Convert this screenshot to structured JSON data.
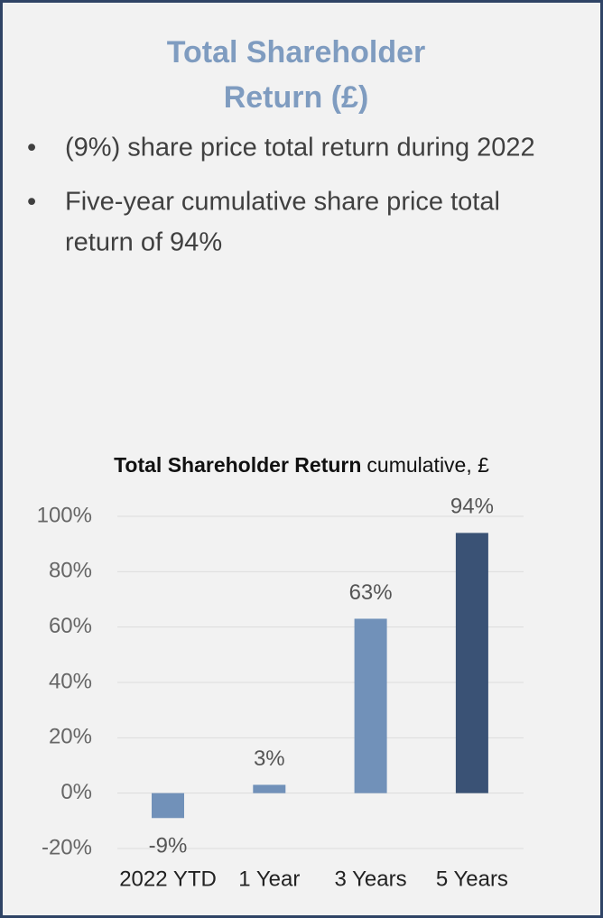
{
  "header": {
    "title_lines": [
      "Total Shareholder",
      "Return (£)"
    ]
  },
  "bullets": [
    "(9%) share price total return during 2022",
    [
      "Five-year cumulative share price total",
      "return of 94%"
    ]
  ],
  "chart_data": {
    "type": "bar",
    "title": "Total Shareholder Return",
    "subtitle": "cumulative, £",
    "categories": [
      "2022 YTD",
      "1 Year",
      "3 Years",
      "5 Years"
    ],
    "values": [
      -9,
      3,
      63,
      94
    ],
    "value_labels": [
      "-9%",
      "3%",
      "63%",
      "94%"
    ],
    "colors": [
      "#7191b9",
      "#7191b9",
      "#7191b9",
      "#3a5275"
    ],
    "ylim": [
      -20,
      100
    ],
    "yticks": [
      {
        "value": -20,
        "label": "-20%"
      },
      {
        "value": 0,
        "label": "0%"
      },
      {
        "value": 20,
        "label": "20%"
      },
      {
        "value": 40,
        "label": "40%"
      },
      {
        "value": 60,
        "label": "60%"
      },
      {
        "value": 80,
        "label": "80%"
      },
      {
        "value": 100,
        "label": "100%"
      }
    ],
    "grid": true
  }
}
